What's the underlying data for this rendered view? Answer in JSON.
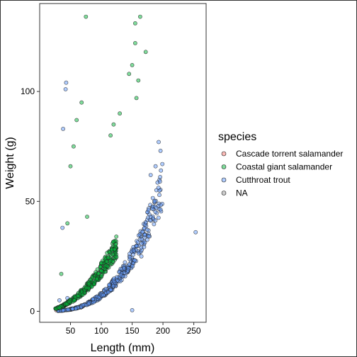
{
  "chart_data": {
    "type": "scatter",
    "xlabel": "Length (mm)",
    "ylabel": "Weight (g)",
    "xlim": [
      0,
      270
    ],
    "ylim": [
      -5,
      140
    ],
    "xticks": [
      50,
      100,
      150,
      200,
      250
    ],
    "yticks": [
      0,
      50,
      100
    ],
    "grid": false,
    "legend_position": "right",
    "legend_title": "species",
    "series": [
      {
        "name": "Cascade torrent salamander",
        "color": "#F8766D",
        "points": [
          [
            27,
            0.5
          ],
          [
            30,
            0.7
          ],
          [
            33,
            0.8
          ]
        ]
      },
      {
        "name": "Coastal giant salamander",
        "color": "#00BA38",
        "trend": {
          "x_start": 25,
          "x_end": 125,
          "a": 0.0015,
          "b": 2.05,
          "count": 320
        },
        "points": [
          [
            75,
            134
          ],
          [
            163,
            134
          ],
          [
            155,
            131
          ],
          [
            155,
            122
          ],
          [
            172,
            118
          ],
          [
            150,
            112
          ],
          [
            160,
            105
          ],
          [
            145,
            108
          ],
          [
            157,
            97
          ],
          [
            68,
            95
          ],
          [
            60,
            87
          ],
          [
            55,
            75
          ],
          [
            50,
            66
          ],
          [
            77,
            43
          ],
          [
            45,
            40
          ],
          [
            35,
            17
          ],
          [
            115,
            80
          ],
          [
            120,
            85
          ],
          [
            130,
            90
          ]
        ]
      },
      {
        "name": "Cutthroat trout",
        "color": "#619CFF",
        "trend": {
          "x_start": 30,
          "x_end": 200,
          "a": 8e-06,
          "b": 2.98,
          "count": 380
        },
        "points": [
          [
            43,
            104
          ],
          [
            42,
            101
          ],
          [
            38,
            83
          ],
          [
            37,
            38
          ],
          [
            253,
            36
          ],
          [
            150,
            0.5
          ],
          [
            193,
            77
          ],
          [
            196,
            73
          ],
          [
            199,
            67
          ],
          [
            188,
            66
          ],
          [
            180,
            62
          ],
          [
            175,
            45
          ],
          [
            170,
            35
          ],
          [
            165,
            25
          ],
          [
            45,
            6
          ],
          [
            32,
            5
          ]
        ]
      },
      {
        "name": "NA",
        "color": "#999999",
        "points": []
      }
    ]
  }
}
